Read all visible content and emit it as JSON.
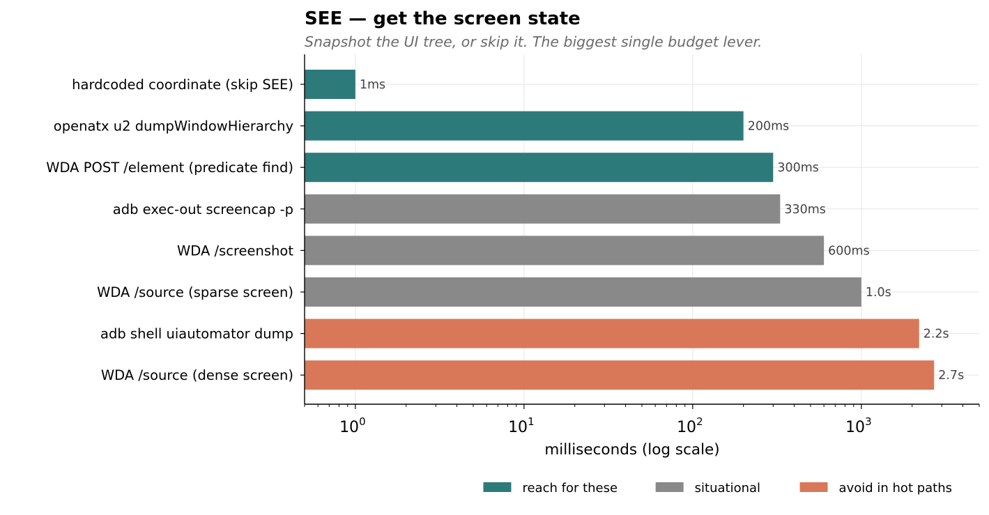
{
  "chart_data": {
    "type": "bar",
    "orientation": "horizontal",
    "title": "SEE — get the screen state",
    "subtitle": "Snapshot the UI tree, or skip it. The biggest single budget lever.",
    "xlabel": "milliseconds (log scale)",
    "ylabel": "",
    "xscale": "log",
    "xlim": [
      0.5,
      5000
    ],
    "grid": true,
    "legend_position": "bottom-right",
    "x_ticks": [
      {
        "value": 1,
        "base": "10",
        "exp": "0"
      },
      {
        "value": 10,
        "base": "10",
        "exp": "1"
      },
      {
        "value": 100,
        "base": "10",
        "exp": "2"
      },
      {
        "value": 1000,
        "base": "10",
        "exp": "3"
      }
    ],
    "categories": [
      "hardcoded coordinate (skip SEE)",
      "openatx u2 dumpWindowHierarchy",
      "WDA POST /element (predicate find)",
      "adb exec-out screencap -p",
      "WDA /screenshot",
      "WDA /source (sparse screen)",
      "adb shell uiautomator dump",
      "WDA /source (dense screen)"
    ],
    "values": [
      1,
      200,
      300,
      330,
      600,
      1000,
      2200,
      2700
    ],
    "data_labels": [
      "1ms",
      "200ms",
      "300ms",
      "330ms",
      "600ms",
      "1.0s",
      "2.2s",
      "2.7s"
    ],
    "groups": [
      "reach",
      "reach",
      "reach",
      "situational",
      "situational",
      "situational",
      "avoid",
      "avoid"
    ],
    "legend": [
      {
        "key": "reach",
        "label": "reach for these",
        "color": "#2d7a7b"
      },
      {
        "key": "situational",
        "label": "situational",
        "color": "#898989"
      },
      {
        "key": "avoid",
        "label": "avoid in hot paths",
        "color": "#d97858"
      }
    ]
  }
}
